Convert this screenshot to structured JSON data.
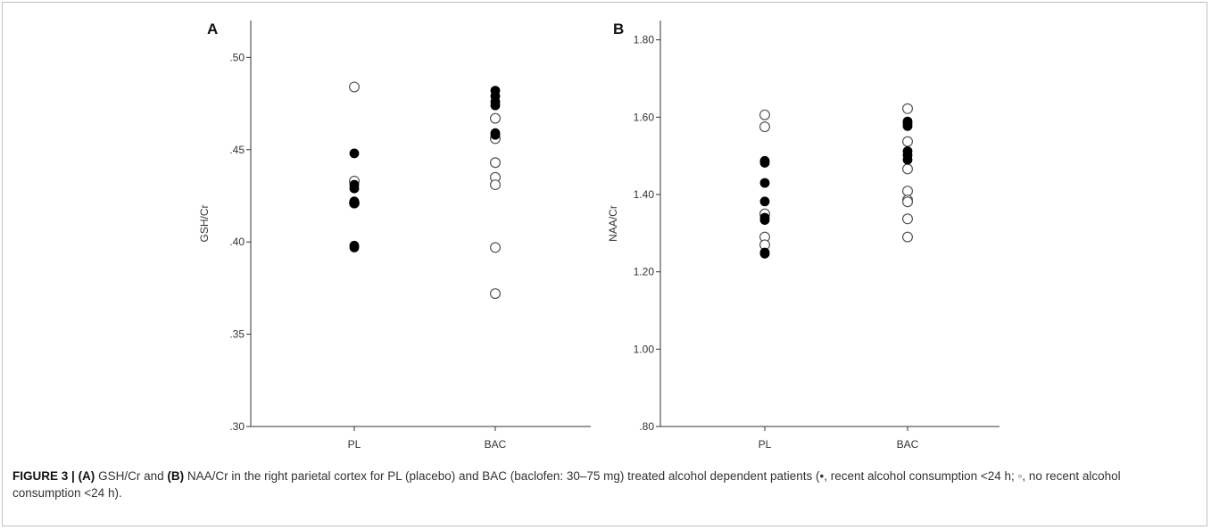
{
  "caption": {
    "figure_label": "FIGURE 3 |",
    "part_a_label": "(A)",
    "part_a_text": "GSH/Cr and",
    "part_b_label": "(B)",
    "part_b_text": "NAA/Cr in the right parietal cortex for PL (placebo) and BAC (baclofen: 30–75 mg) treated alcohol dependent patients (•, recent alcohol consumption <24 h; ◦, no recent alcohol consumption <24 h)."
  },
  "colors": {
    "filled_marker": "#000000",
    "open_marker_stroke": "#555555",
    "axis": "#333333"
  },
  "chart_data": [
    {
      "type": "scatter",
      "panel_label": "A",
      "ylabel": "GSH/Cr",
      "xlabel": "",
      "categories": [
        "PL",
        "BAC"
      ],
      "ylim": [
        0.3,
        0.52
      ],
      "yticks": [
        0.3,
        0.35,
        0.4,
        0.45,
        0.5
      ],
      "ytick_labels": [
        ".30",
        ".35",
        ".40",
        ".45",
        ".50"
      ],
      "grid": false,
      "series": [
        {
          "marker": "filled",
          "points": [
            {
              "x": "PL",
              "y": 0.448
            },
            {
              "x": "PL",
              "y": 0.431
            },
            {
              "x": "PL",
              "y": 0.429
            },
            {
              "x": "PL",
              "y": 0.422
            },
            {
              "x": "PL",
              "y": 0.421
            },
            {
              "x": "PL",
              "y": 0.398
            },
            {
              "x": "PL",
              "y": 0.397
            },
            {
              "x": "BAC",
              "y": 0.482
            },
            {
              "x": "BAC",
              "y": 0.479
            },
            {
              "x": "BAC",
              "y": 0.476
            },
            {
              "x": "BAC",
              "y": 0.474
            },
            {
              "x": "BAC",
              "y": 0.459
            },
            {
              "x": "BAC",
              "y": 0.458
            }
          ]
        },
        {
          "marker": "open",
          "points": [
            {
              "x": "PL",
              "y": 0.484
            },
            {
              "x": "PL",
              "y": 0.433
            },
            {
              "x": "PL",
              "y": 0.421
            },
            {
              "x": "BAC",
              "y": 0.467
            },
            {
              "x": "BAC",
              "y": 0.456
            },
            {
              "x": "BAC",
              "y": 0.443
            },
            {
              "x": "BAC",
              "y": 0.435
            },
            {
              "x": "BAC",
              "y": 0.431
            },
            {
              "x": "BAC",
              "y": 0.397
            },
            {
              "x": "BAC",
              "y": 0.372
            }
          ]
        }
      ]
    },
    {
      "type": "scatter",
      "panel_label": "B",
      "ylabel": "NAA/Cr",
      "xlabel": "",
      "categories": [
        "PL",
        "BAC"
      ],
      "ylim": [
        0.8,
        1.85
      ],
      "yticks": [
        0.8,
        1.0,
        1.2,
        1.4,
        1.6,
        1.8
      ],
      "ytick_labels": [
        ".80",
        "1.00",
        "1.20",
        "1.40",
        "1.60",
        "1.80"
      ],
      "grid": false,
      "series": [
        {
          "marker": "filled",
          "points": [
            {
              "x": "PL",
              "y": 1.487
            },
            {
              "x": "PL",
              "y": 1.482
            },
            {
              "x": "PL",
              "y": 1.43
            },
            {
              "x": "PL",
              "y": 1.382
            },
            {
              "x": "PL",
              "y": 1.34
            },
            {
              "x": "PL",
              "y": 1.334
            },
            {
              "x": "PL",
              "y": 1.25
            },
            {
              "x": "PL",
              "y": 1.247
            },
            {
              "x": "BAC",
              "y": 1.589
            },
            {
              "x": "BAC",
              "y": 1.583
            },
            {
              "x": "BAC",
              "y": 1.577
            },
            {
              "x": "BAC",
              "y": 1.512
            },
            {
              "x": "BAC",
              "y": 1.502
            },
            {
              "x": "BAC",
              "y": 1.49
            }
          ]
        },
        {
          "marker": "open",
          "points": [
            {
              "x": "PL",
              "y": 1.606
            },
            {
              "x": "PL",
              "y": 1.575
            },
            {
              "x": "PL",
              "y": 1.35
            },
            {
              "x": "PL",
              "y": 1.29
            },
            {
              "x": "PL",
              "y": 1.27
            },
            {
              "x": "BAC",
              "y": 1.622
            },
            {
              "x": "BAC",
              "y": 1.537
            },
            {
              "x": "BAC",
              "y": 1.466
            },
            {
              "x": "BAC",
              "y": 1.409
            },
            {
              "x": "BAC",
              "y": 1.386
            },
            {
              "x": "BAC",
              "y": 1.381
            },
            {
              "x": "BAC",
              "y": 1.337
            },
            {
              "x": "BAC",
              "y": 1.29
            }
          ]
        }
      ]
    }
  ]
}
